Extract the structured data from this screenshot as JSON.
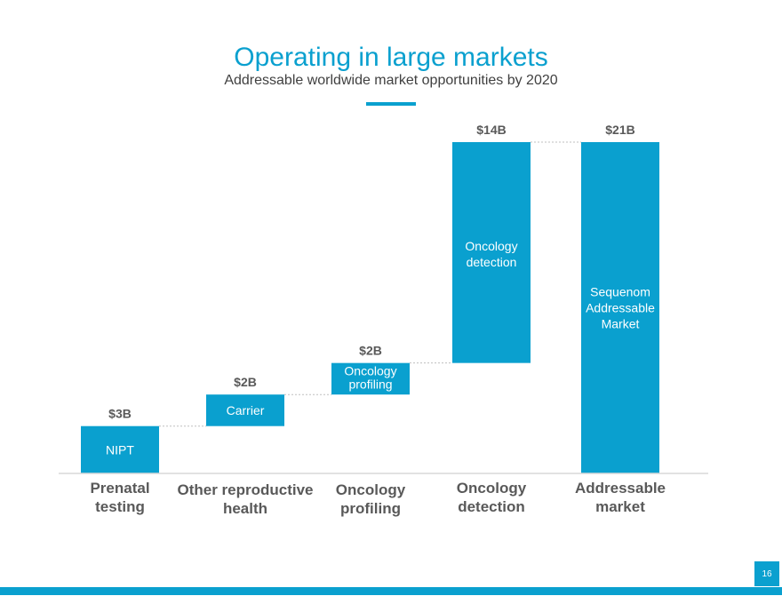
{
  "header": {
    "title": "Operating in large markets",
    "subtitle": "Addressable worldwide market opportunities by 2020"
  },
  "page_number": "16",
  "colors": {
    "accent": "#0aa0cf",
    "text": "#595959",
    "connector": "#bfbfbf",
    "bar_label": "#ffffff"
  },
  "chart_data": {
    "type": "waterfall",
    "title": "Operating in large markets",
    "subtitle": "Addressable worldwide market opportunities by 2020",
    "units": "$B",
    "ylim": [
      0,
      21
    ],
    "categories": [
      "Prenatal\ntesting",
      "Other reproductive\nhealth",
      "Oncology\nprofiling",
      "Oncology\ndetection",
      "Addressable\nmarket"
    ],
    "values": [
      3,
      2,
      2,
      14,
      21
    ],
    "value_labels": [
      "$3B",
      "$2B",
      "$2B",
      "$14B",
      "$21B"
    ],
    "bar_labels": [
      "NIPT",
      "Carrier",
      "Oncology\nprofiling",
      "Oncology\ndetection",
      "Sequenom\nAddressable\nMarket"
    ],
    "is_total": [
      false,
      false,
      false,
      false,
      true
    ],
    "gridlines": false
  }
}
